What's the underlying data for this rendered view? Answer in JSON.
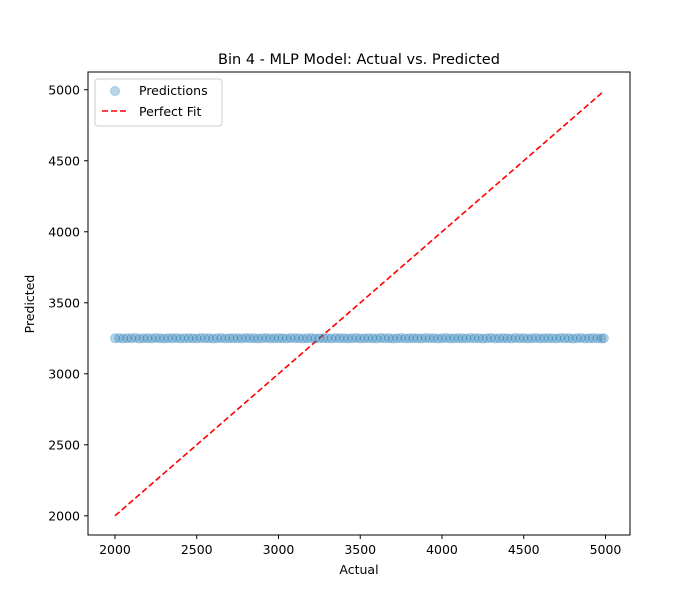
{
  "chart_data": {
    "type": "scatter",
    "title": "Bin 4 - MLP Model: Actual vs. Predicted",
    "xlabel": "Actual",
    "ylabel": "Predicted",
    "xlim": [
      1835,
      5150
    ],
    "ylim": [
      1865,
      5125
    ],
    "x_ticks": [
      2000,
      2500,
      3000,
      3500,
      4000,
      4500,
      5000
    ],
    "y_ticks": [
      2000,
      2500,
      3000,
      3500,
      4000,
      4500,
      5000
    ],
    "grid": false,
    "legend_position": "top-left",
    "series": [
      {
        "name": "Predictions",
        "kind": "scatter",
        "color": "#1f77b4",
        "alpha": 0.3,
        "x_range": [
          2000,
          4990
        ],
        "y_constant": 3250,
        "x": [
          2000,
          2025,
          2050,
          2075,
          2100,
          2125,
          2150,
          2175,
          2200,
          2225,
          2250,
          2275,
          2300,
          2325,
          2350,
          2375,
          2400,
          2425,
          2450,
          2475,
          2500,
          2525,
          2550,
          2575,
          2600,
          2625,
          2650,
          2675,
          2700,
          2725,
          2750,
          2775,
          2800,
          2825,
          2850,
          2875,
          2900,
          2925,
          2950,
          2975,
          3000,
          3025,
          3050,
          3075,
          3100,
          3125,
          3150,
          3175,
          3200,
          3225,
          3250,
          3275,
          3300,
          3325,
          3350,
          3375,
          3400,
          3425,
          3450,
          3475,
          3500,
          3525,
          3550,
          3575,
          3600,
          3625,
          3650,
          3675,
          3700,
          3725,
          3750,
          3775,
          3800,
          3825,
          3850,
          3875,
          3900,
          3925,
          3950,
          3975,
          4000,
          4025,
          4050,
          4075,
          4100,
          4125,
          4150,
          4175,
          4200,
          4225,
          4250,
          4275,
          4300,
          4325,
          4350,
          4375,
          4400,
          4425,
          4450,
          4475,
          4500,
          4525,
          4550,
          4575,
          4600,
          4625,
          4650,
          4675,
          4700,
          4725,
          4750,
          4775,
          4800,
          4825,
          4850,
          4875,
          4900,
          4925,
          4950,
          4975,
          4990
        ],
        "y": [
          3250,
          3252,
          3249,
          3251,
          3250,
          3253,
          3248,
          3250,
          3251,
          3249,
          3252,
          3250,
          3248,
          3251,
          3250,
          3252,
          3249,
          3250,
          3251,
          3250,
          3249,
          3252,
          3250,
          3251,
          3248,
          3250,
          3252,
          3249,
          3250,
          3251,
          3250,
          3249,
          3252,
          3250,
          3251,
          3248,
          3250,
          3252,
          3249,
          3250,
          3251,
          3250,
          3249,
          3252,
          3250,
          3251,
          3248,
          3250,
          3252,
          3249,
          3250,
          3251,
          3250,
          3249,
          3252,
          3250,
          3251,
          3248,
          3250,
          3252,
          3249,
          3250,
          3251,
          3250,
          3249,
          3252,
          3250,
          3251,
          3248,
          3250,
          3252,
          3249,
          3250,
          3251,
          3250,
          3249,
          3252,
          3250,
          3251,
          3248,
          3250,
          3252,
          3249,
          3250,
          3251,
          3250,
          3249,
          3252,
          3250,
          3251,
          3248,
          3250,
          3252,
          3249,
          3250,
          3251,
          3250,
          3249,
          3252,
          3250,
          3251,
          3248,
          3250,
          3252,
          3249,
          3250,
          3251,
          3250,
          3249,
          3252,
          3250,
          3251,
          3248,
          3250,
          3252,
          3249,
          3250,
          3251,
          3250,
          3249,
          3250
        ]
      },
      {
        "name": "Perfect Fit",
        "kind": "line",
        "style": "dashed",
        "color": "#ff0000",
        "x": [
          2000,
          4990
        ],
        "y": [
          2000,
          4990
        ]
      }
    ]
  }
}
